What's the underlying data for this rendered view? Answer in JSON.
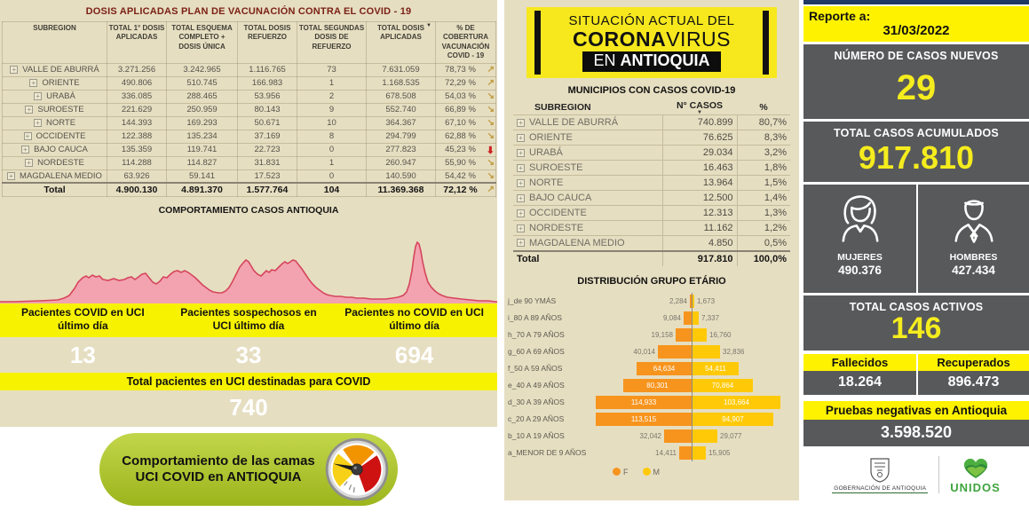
{
  "colors": {
    "beige": "#E6DEC1",
    "bright_yellow": "#FFF200",
    "panel_gray": "#58595B",
    "navy": "#1F3864",
    "title_maroon": "#7B2116",
    "area_fill": "#F2A3AF",
    "area_stroke": "#D6455D",
    "trend_gold": "#C09A3E",
    "trend_red": "#CC2020",
    "badge_green": "#A8C32A",
    "female_orange": "#F7941D",
    "male_yellow": "#FFC907"
  },
  "left_panel": {
    "title": "DOSIS APLICADAS PLAN DE VACUNACIÓN CONTRA EL COVID - 19",
    "table": {
      "columns": [
        "SUBREGION",
        "TOTAL 1° DOSIS APLICADAS",
        "TOTAL ESQUEMA COMPLETO + DOSIS ÚNICA",
        "TOTAL DOSIS REFUERZO",
        "TOTAL SEGUNDAS DOSIS DE REFUERZO",
        "TOTAL DOSIS APLICADAS",
        "% DE COBERTURA VACUNACIÓN COVID - 19"
      ],
      "rows": [
        {
          "name": "VALLE DE ABURRÁ",
          "dosis1": "3.271.256",
          "esquema": "3.242.965",
          "refuerzo": "1.116.765",
          "segundas": "73",
          "total": "7.631.059",
          "cobertura": "78,73 %",
          "trend": "up"
        },
        {
          "name": "ORIENTE",
          "dosis1": "490.806",
          "esquema": "510.745",
          "refuerzo": "166.983",
          "segundas": "1",
          "total": "1.168.535",
          "cobertura": "72,29 %",
          "trend": "up"
        },
        {
          "name": "URABÁ",
          "dosis1": "336.085",
          "esquema": "288.465",
          "refuerzo": "53.956",
          "segundas": "2",
          "total": "678.508",
          "cobertura": "54,03 %",
          "trend": "down"
        },
        {
          "name": "SUROESTE",
          "dosis1": "221.629",
          "esquema": "250.959",
          "refuerzo": "80.143",
          "segundas": "9",
          "total": "552.740",
          "cobertura": "66,89 %",
          "trend": "down"
        },
        {
          "name": "NORTE",
          "dosis1": "144.393",
          "esquema": "169.293",
          "refuerzo": "50.671",
          "segundas": "10",
          "total": "364.367",
          "cobertura": "67,10 %",
          "trend": "down"
        },
        {
          "name": "OCCIDENTE",
          "dosis1": "122.388",
          "esquema": "135.234",
          "refuerzo": "37.169",
          "segundas": "8",
          "total": "294.799",
          "cobertura": "62,88 %",
          "trend": "down"
        },
        {
          "name": "BAJO CAUCA",
          "dosis1": "135.359",
          "esquema": "119.741",
          "refuerzo": "22.723",
          "segundas": "0",
          "total": "277.823",
          "cobertura": "45,23 %",
          "trend": "strong"
        },
        {
          "name": "NORDESTE",
          "dosis1": "114.288",
          "esquema": "114.827",
          "refuerzo": "31.831",
          "segundas": "1",
          "total": "260.947",
          "cobertura": "55,90 %",
          "trend": "down"
        },
        {
          "name": "MAGDALENA MEDIO",
          "dosis1": "63.926",
          "esquema": "59.141",
          "refuerzo": "17.523",
          "segundas": "0",
          "total": "140.590",
          "cobertura": "54,42 %",
          "trend": "down"
        }
      ],
      "total": {
        "name": "Total",
        "dosis1": "4.900.130",
        "esquema": "4.891.370",
        "refuerzo": "1.577.764",
        "segundas": "104",
        "total": "11.369.368",
        "cobertura": "72,12 %",
        "trend": "up"
      }
    },
    "chart_title": "COMPORTAMIENTO CASOS ANTIOQUIA",
    "uci": {
      "cards": [
        {
          "label": "Pacientes COVID en UCI último día",
          "value": "13"
        },
        {
          "label": "Pacientes sospechosos en UCI último día",
          "value": "33"
        },
        {
          "label": "Pacientes no COVID en UCI último día",
          "value": "694"
        }
      ],
      "total_label": "Total pacientes en UCI destinadas para COVID",
      "total_value": "740"
    },
    "badge_text": "Comportamiento de las camas UCI COVID en ANTIOQUIA"
  },
  "middle_panel": {
    "logo": {
      "line1": "SITUACIÓN ACTUAL DEL",
      "line2_bold": "CORONA",
      "line2_rest": "VIRUS",
      "line3_prefix": "EN ",
      "line3_bold": "ANTIOQUIA"
    },
    "municipios_title": "MUNICIPIOS CON CASOS COVID-19",
    "table": {
      "columns": [
        "SUBREGION",
        "N° CASOS",
        "%"
      ],
      "rows": [
        {
          "name": "VALLE DE ABURRÁ",
          "casos": "740.899",
          "pct": "80,7%"
        },
        {
          "name": "ORIENTE",
          "casos": "76.625",
          "pct": "8,3%"
        },
        {
          "name": "URABÁ",
          "casos": "29.034",
          "pct": "3,2%"
        },
        {
          "name": "SUROESTE",
          "casos": "16.463",
          "pct": "1,8%"
        },
        {
          "name": "NORTE",
          "casos": "13.964",
          "pct": "1,5%"
        },
        {
          "name": "BAJO CAUCA",
          "casos": "12.500",
          "pct": "1,4%"
        },
        {
          "name": "OCCIDENTE",
          "casos": "12.313",
          "pct": "1,3%"
        },
        {
          "name": "NORDESTE",
          "casos": "11.162",
          "pct": "1,2%"
        },
        {
          "name": "MAGDALENA MEDIO",
          "casos": "4.850",
          "pct": "0,5%"
        }
      ],
      "total": {
        "name": "Total",
        "casos": "917.810",
        "pct": "100,0%"
      }
    },
    "age_chart": {
      "type": "bar",
      "title": "DISTRIBUCIÓN GRUPO ETÁRIO",
      "legend": [
        {
          "name": "F",
          "color": "#F7941D"
        },
        {
          "name": "M",
          "color": "#FFC907"
        }
      ],
      "rows": [
        {
          "label": "j_de 90 YMÁS",
          "f": "2,284",
          "m": "1,673"
        },
        {
          "label": "i_80 A 89 AÑOS",
          "f": "9,084",
          "m": "7,337"
        },
        {
          "label": "h_70 A 79 AÑOS",
          "f": "19,158",
          "m": "16,760"
        },
        {
          "label": "g_60 A 69 AÑOS",
          "f": "40,014",
          "m": "32,836"
        },
        {
          "label": "f_50 A 59 AÑOS",
          "f": "64,634",
          "m": "54,411"
        },
        {
          "label": "e_40 A 49 AÑOS",
          "f": "80,301",
          "m": "70,864"
        },
        {
          "label": "d_30 A 39 AÑOS",
          "f": "114,933",
          "m": "103,664"
        },
        {
          "label": "c_20 A 29 AÑOS",
          "f": "113,515",
          "m": "94,907"
        },
        {
          "label": "b_10 A 19 AÑOS",
          "f": "32,042",
          "m": "29,077"
        },
        {
          "label": "a_MENOR DE 9 AÑOS",
          "f": "14,411",
          "m": "15,905"
        }
      ]
    }
  },
  "right_panel": {
    "report_label": "Reporte a:",
    "report_date": "31/03/2022",
    "new_cases": {
      "label": "NÚMERO DE CASOS NUEVOS",
      "value": "29"
    },
    "total_cases": {
      "label": "TOTAL CASOS ACUMULADOS",
      "value": "917.810"
    },
    "gender": {
      "women_label": "MUJERES",
      "women_value": "490.376",
      "men_label": "HOMBRES",
      "men_value": "427.434"
    },
    "active": {
      "label": "TOTAL CASOS ACTIVOS",
      "value": "146"
    },
    "deaths": {
      "label": "Fallecidos",
      "value": "18.264"
    },
    "recovered": {
      "label": "Recuperados",
      "value": "896.473"
    },
    "negative_tests": {
      "label": "Pruebas negativas en Antioquia",
      "value": "3.598.520"
    },
    "logos": {
      "gobernacion": "GOBERNACIÓN DE ANTIOQUIA",
      "unidos": "UNIDOS"
    }
  }
}
